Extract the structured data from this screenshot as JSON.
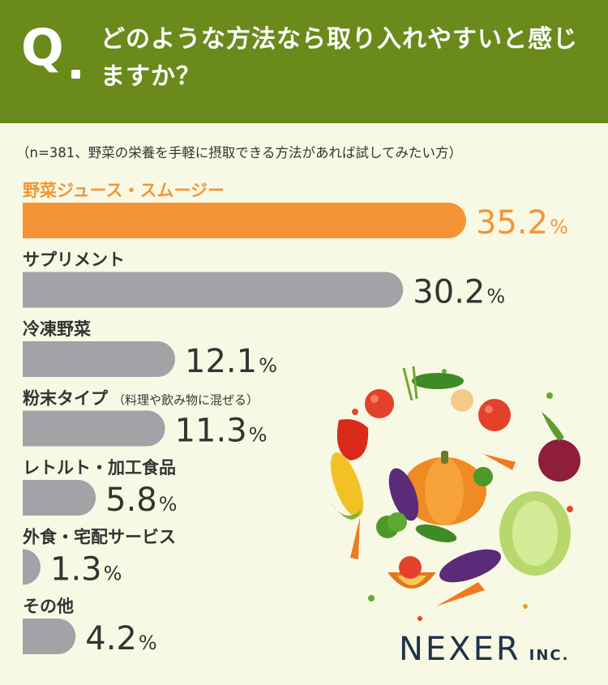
{
  "header": {
    "q_mark": "Q",
    "question": "どのような方法なら取り入れやすいと感じますか？"
  },
  "subtitle": "（n=381、野菜の栄養を手軽に摂取できる方法があれば試してみたい方）",
  "chart_data": {
    "type": "bar",
    "orientation": "horizontal",
    "categories": [
      "野菜ジュース・スムージー",
      "サプリメント",
      "冷凍野菜",
      "粉末タイプ",
      "レトルト・加工食品",
      "外食・宅配サービス",
      "その他"
    ],
    "category_notes": [
      "",
      "",
      "",
      "（料理や飲み物に混ぜる）",
      "",
      "",
      ""
    ],
    "values": [
      35.2,
      30.2,
      12.1,
      11.3,
      5.8,
      1.3,
      4.2
    ],
    "value_labels": [
      "35.2",
      "30.2",
      "12.1",
      "11.3",
      "5.8",
      "1.3",
      "4.2"
    ],
    "unit": "%",
    "highlight_index": 0,
    "colors": {
      "highlight": "#f59436",
      "default": "#a2a3a7",
      "label": "#333333"
    },
    "xlim": [
      0,
      40
    ],
    "grid": false,
    "legend": "none"
  },
  "logo": {
    "name": "NEXER",
    "suffix": "INC."
  },
  "illustration": {
    "icon": "vegetable-circle-illustration"
  }
}
